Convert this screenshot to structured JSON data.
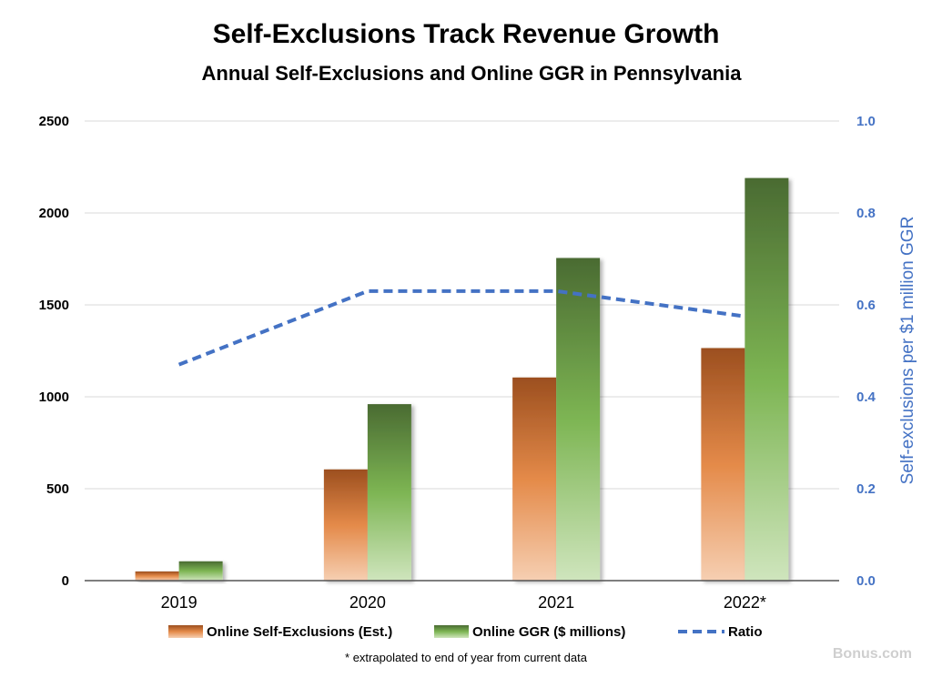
{
  "chart_data": {
    "type": "bar",
    "title": "Self-Exclusions Track Revenue Growth",
    "subtitle": "Annual Self-Exclusions and Online GGR in Pennsylvania",
    "categories": [
      "2019",
      "2020",
      "2021",
      "2022*"
    ],
    "series": [
      {
        "name": "Online Self-Exclusions (Est.)",
        "type": "bar",
        "axis": "left",
        "values": [
          50,
          605,
          1105,
          1265
        ],
        "color": "#e48a49"
      },
      {
        "name": "Online GGR ($ millions)",
        "type": "bar",
        "axis": "left",
        "values": [
          105,
          960,
          1755,
          2190
        ],
        "color": "#70ad47"
      },
      {
        "name": "Ratio",
        "type": "line",
        "style": "dashed",
        "axis": "right",
        "values": [
          0.47,
          0.63,
          0.63,
          0.575
        ],
        "color": "#4472c4"
      }
    ],
    "ylim": [
      0,
      2500
    ],
    "y_ticks": [
      "0",
      "500",
      "1000",
      "1500",
      "2000",
      "2500"
    ],
    "y2lim": [
      0,
      1.0
    ],
    "y2_ticks": [
      "0.0",
      "0.2",
      "0.4",
      "0.6",
      "0.8",
      "1.0"
    ],
    "xlabel": "",
    "ylabel": "",
    "y2label": "Self-exclusions per $1 million GGR",
    "grid": true,
    "legend": "bottom",
    "footnote": "* extrapolated to end of year from current data"
  },
  "watermark": "Bonus.com"
}
